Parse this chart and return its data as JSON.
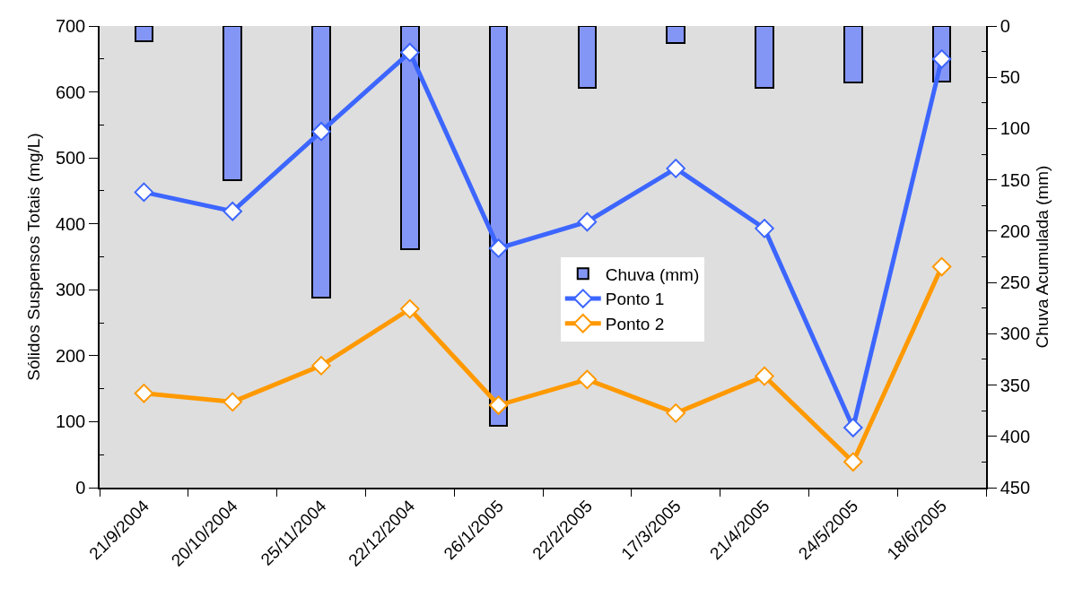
{
  "chart_data": {
    "type": "bar",
    "ylabel": "Sólidos Suspensos Totais (mg/L)",
    "y2label": "Chuva Acumulada (mm)",
    "categories": [
      "21/9/2004",
      "20/10/2004",
      "25/11/2004",
      "22/12/2004",
      "26/1/2005",
      "22/2/2005",
      "17/3/2005",
      "21/4/2005",
      "24/5/2005",
      "18/6/2005"
    ],
    "series": [
      {
        "name": "Chuva (mm)",
        "axis": "y2",
        "color": "#8496f5",
        "values": [
          15,
          150,
          265,
          218,
          390,
          60,
          17,
          60,
          55,
          54
        ]
      },
      {
        "name": "Ponto 1",
        "type": "line",
        "color": "#3d66ff",
        "values": [
          448,
          419,
          540,
          660,
          363,
          403,
          484,
          393,
          91,
          650
        ]
      },
      {
        "name": "Ponto 2",
        "type": "line",
        "color": "#ff9900",
        "values": [
          143,
          130,
          185,
          271,
          125,
          164,
          113,
          169,
          39,
          335
        ]
      }
    ],
    "ylim": [
      0,
      700
    ],
    "yticks": [
      0,
      {
        "value": 50,
        "label": null
      },
      100,
      {
        "value": 150,
        "label": null
      },
      200,
      {
        "value": 250,
        "label": null
      },
      300,
      {
        "value": 350,
        "label": null
      },
      400,
      {
        "value": 450,
        "label": null
      },
      500,
      {
        "value": 550,
        "label": null
      },
      600,
      {
        "value": 650,
        "label": null
      },
      700
    ],
    "y2lim": [
      450,
      0
    ],
    "y2ticks": [
      0,
      {
        "value": 25,
        "label": null
      },
      50,
      {
        "value": 75,
        "label": null
      },
      100,
      {
        "value": 125,
        "label": null
      },
      150,
      {
        "value": 175,
        "label": null
      },
      200,
      {
        "value": 225,
        "label": null
      },
      250,
      {
        "value": 275,
        "label": null
      },
      300,
      {
        "value": 325,
        "label": null
      },
      350,
      {
        "value": 375,
        "label": null
      },
      400,
      {
        "value": 425,
        "label": null
      },
      450
    ],
    "legend": "center",
    "marker": "diamond",
    "line_style": "solid",
    "grid": false
  }
}
